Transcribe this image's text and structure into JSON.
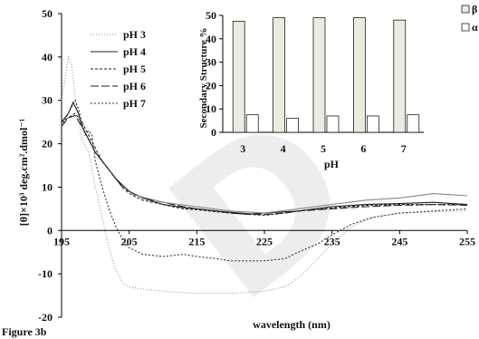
{
  "figure_label": "Figure 3b",
  "watermark_text": "D",
  "chart_data": [
    {
      "type": "line",
      "title": "",
      "xlabel": "wavelength (nm)",
      "ylabel": "[θ]×10³ deg.cm².dmol⁻¹",
      "xlim": [
        195,
        255
      ],
      "ylim": [
        -20,
        50
      ],
      "xticks": [
        195,
        205,
        215,
        225,
        235,
        245,
        255
      ],
      "yticks": [
        -20,
        -10,
        0,
        10,
        20,
        30,
        40,
        50
      ],
      "grid": false,
      "legend_position": "top-left",
      "series": [
        {
          "name": "pH 3",
          "color": "#999999",
          "dash": "1,2",
          "points": [
            [
              195,
              30
            ],
            [
              195.6,
              36
            ],
            [
              196,
              40
            ],
            [
              196.5,
              38
            ],
            [
              197,
              31
            ],
            [
              197.5,
              26
            ],
            [
              198,
              21
            ],
            [
              199,
              18
            ],
            [
              200,
              10
            ],
            [
              201,
              3
            ],
            [
              202,
              -4
            ],
            [
              203,
              -9
            ],
            [
              204,
              -12
            ],
            [
              205,
              -13
            ],
            [
              207,
              -13.5
            ],
            [
              210,
              -14
            ],
            [
              215,
              -14.5
            ],
            [
              220,
              -14.5
            ],
            [
              225,
              -14
            ],
            [
              228,
              -13
            ],
            [
              230,
              -11
            ],
            [
              232,
              -8
            ],
            [
              235,
              -3
            ],
            [
              238,
              1
            ],
            [
              241,
              3
            ],
            [
              245,
              4
            ],
            [
              250,
              4.3
            ],
            [
              255,
              4.5
            ]
          ]
        },
        {
          "name": "pH 4",
          "color": "#222222",
          "dash": "",
          "points": [
            [
              195,
              25
            ],
            [
              196,
              27
            ],
            [
              196.7,
              29.5
            ],
            [
              197.5,
              27
            ],
            [
              198,
              24
            ],
            [
              199,
              21
            ],
            [
              200,
              18
            ],
            [
              201,
              16
            ],
            [
              202,
              14
            ],
            [
              203,
              12
            ],
            [
              204,
              10.5
            ],
            [
              205,
              9
            ],
            [
              207,
              7.5
            ],
            [
              210,
              6
            ],
            [
              213,
              5.3
            ],
            [
              215,
              5
            ],
            [
              218,
              4.5
            ],
            [
              220,
              4.2
            ],
            [
              223,
              3.8
            ],
            [
              225,
              4
            ],
            [
              228,
              4.3
            ],
            [
              230,
              4.5
            ],
            [
              235,
              5.5
            ],
            [
              240,
              6
            ],
            [
              245,
              6.2
            ],
            [
              250,
              6.5
            ],
            [
              255,
              6
            ]
          ]
        },
        {
          "name": "pH 5",
          "color": "#222222",
          "dash": "3,2",
          "points": [
            [
              195,
              25
            ],
            [
              196,
              26
            ],
            [
              197,
              27
            ],
            [
              198,
              25
            ],
            [
              199,
              22
            ],
            [
              200,
              19
            ],
            [
              201,
              16
            ],
            [
              202,
              14
            ],
            [
              203,
              12
            ],
            [
              204,
              10
            ],
            [
              205,
              8.5
            ],
            [
              207,
              7
            ],
            [
              210,
              6
            ],
            [
              213,
              5
            ],
            [
              215,
              4.8
            ],
            [
              218,
              4.3
            ],
            [
              220,
              4
            ],
            [
              223,
              3.7
            ],
            [
              225,
              3.5
            ],
            [
              228,
              4
            ],
            [
              230,
              4.5
            ],
            [
              235,
              5.2
            ],
            [
              240,
              5.8
            ],
            [
              245,
              6
            ],
            [
              250,
              6
            ],
            [
              255,
              6
            ]
          ]
        },
        {
          "name": "pH 6",
          "color": "#222222",
          "dash": "9,3",
          "points": [
            [
              195,
              24
            ],
            [
              196,
              26
            ],
            [
              197,
              26.5
            ],
            [
              198,
              24
            ],
            [
              199,
              21
            ],
            [
              200,
              18
            ],
            [
              201,
              16
            ],
            [
              202,
              14
            ],
            [
              203,
              12
            ],
            [
              204,
              10
            ],
            [
              205,
              9
            ],
            [
              207,
              7.5
            ],
            [
              210,
              6.5
            ],
            [
              213,
              5.5
            ],
            [
              215,
              5
            ],
            [
              218,
              4.5
            ],
            [
              220,
              4
            ],
            [
              223,
              3.7
            ],
            [
              225,
              3.7
            ],
            [
              228,
              4
            ],
            [
              230,
              4.5
            ],
            [
              235,
              5
            ],
            [
              240,
              5.5
            ],
            [
              245,
              5.8
            ],
            [
              250,
              6
            ],
            [
              255,
              5.8
            ]
          ]
        },
        {
          "name": "pH 7",
          "color": "#333333",
          "dash": "2,2",
          "points": [
            [
              195,
              24
            ],
            [
              196,
              27
            ],
            [
              197,
              30
            ],
            [
              197.5,
              28
            ],
            [
              198,
              25
            ],
            [
              198.5,
              22
            ],
            [
              199,
              23
            ],
            [
              199.5,
              22
            ],
            [
              200,
              16
            ],
            [
              201,
              10
            ],
            [
              202,
              5
            ],
            [
              203,
              1
            ],
            [
              204,
              -2
            ],
            [
              205,
              -4
            ],
            [
              207,
              -5.5
            ],
            [
              210,
              -6
            ],
            [
              213,
              -5.5
            ],
            [
              215,
              -6
            ],
            [
              218,
              -6.5
            ],
            [
              220,
              -7
            ],
            [
              223,
              -7
            ],
            [
              225,
              -7
            ],
            [
              228,
              -6.5
            ],
            [
              230,
              -5
            ],
            [
              233,
              -3
            ],
            [
              235,
              -1
            ],
            [
              238,
              1.5
            ],
            [
              241,
              3
            ],
            [
              245,
              4
            ],
            [
              250,
              4.5
            ],
            [
              255,
              5
            ]
          ]
        },
        {
          "name": "",
          "color": "#888888",
          "dash": "",
          "points": [
            [
              205,
              8.5
            ],
            [
              210,
              6.5
            ],
            [
              215,
              5.5
            ],
            [
              220,
              4.5
            ],
            [
              225,
              4
            ],
            [
              230,
              5
            ],
            [
              235,
              6
            ],
            [
              240,
              7
            ],
            [
              245,
              7.5
            ],
            [
              250,
              8.5
            ],
            [
              255,
              8
            ]
          ]
        }
      ]
    },
    {
      "type": "bar",
      "title": "",
      "xlabel": "pH",
      "ylabel": "Secondary Structure %",
      "categories": [
        "3",
        "4",
        "5",
        "6",
        "7"
      ],
      "ylim": [
        0,
        50
      ],
      "yticks": [
        0,
        10,
        20,
        30,
        40,
        50
      ],
      "grid": false,
      "legend_position": "right",
      "series": [
        {
          "name": "β",
          "color": "#ecebe0",
          "values": [
            47.5,
            49,
            49,
            49,
            48
          ]
        },
        {
          "name": "α",
          "color": "#ffffff",
          "values": [
            7.5,
            6,
            7,
            7,
            7.5
          ]
        }
      ]
    }
  ]
}
